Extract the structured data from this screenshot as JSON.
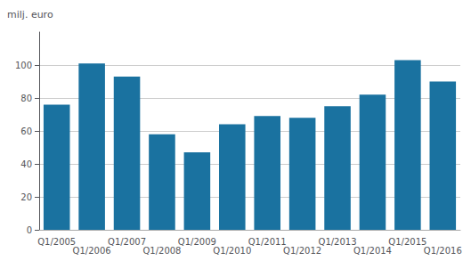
{
  "chart_data": {
    "type": "bar",
    "ylabel": "milj. euro",
    "categories": [
      "Q1/2005",
      "Q1/2006",
      "Q1/2007",
      "Q1/2008",
      "Q1/2009",
      "Q1/2010",
      "Q1/2011",
      "Q1/2012",
      "Q1/2013",
      "Q1/2014",
      "Q1/2015",
      "Q1/2016"
    ],
    "values": [
      76,
      101,
      93,
      58,
      47,
      64,
      69,
      68,
      75,
      82,
      103,
      90
    ],
    "color": "#1a72a0",
    "ylim": [
      0,
      120
    ],
    "yticks": [
      0,
      20,
      40,
      60,
      80,
      100
    ],
    "grid": true
  }
}
